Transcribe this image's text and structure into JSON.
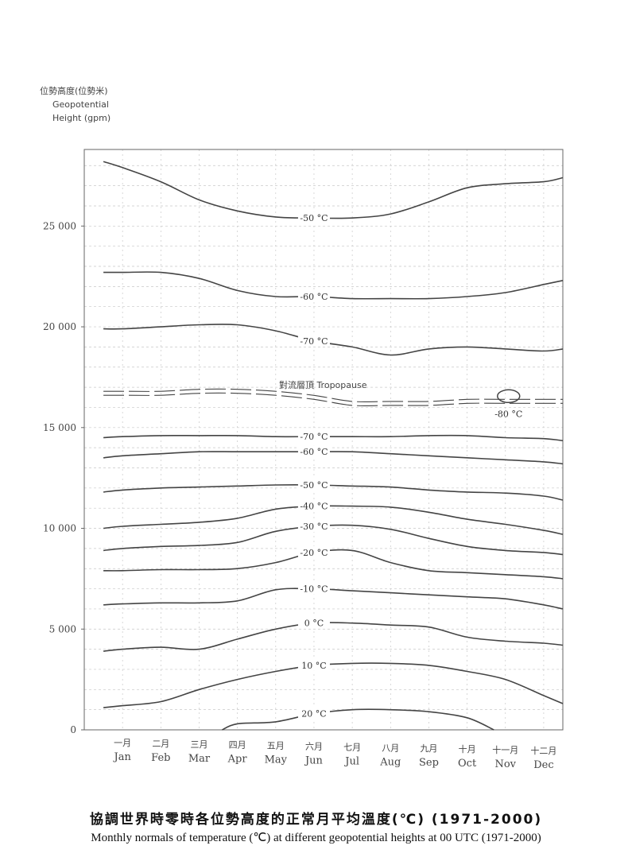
{
  "chart_data": {
    "type": "contour",
    "ylabel_zh": "位勢高度(位勢米)",
    "ylabel_en_1": "Geopotential",
    "ylabel_en_2": "Height (gpm)",
    "y_ticks": [
      0,
      5000,
      10000,
      15000,
      20000,
      25000
    ],
    "y_tick_labels": [
      "0",
      "5 000",
      "10 000",
      "15 000",
      "20 000",
      "25 000"
    ],
    "ylim": [
      0,
      28800
    ],
    "months_zh": [
      "一月",
      "二月",
      "三月",
      "四月",
      "五月",
      "六月",
      "七月",
      "八月",
      "九月",
      "十月",
      "十一月",
      "十二月"
    ],
    "months_en": [
      "Jan",
      "Feb",
      "Mar",
      "Apr",
      "May",
      "Jun",
      "Jul",
      "Aug",
      "Sep",
      "Oct",
      "Nov",
      "Dec"
    ],
    "grid": true,
    "contours": [
      {
        "label": "-50 °C",
        "x": [
          0.5,
          1,
          2,
          3,
          4,
          5,
          6,
          7,
          8,
          9,
          10,
          11,
          12,
          12.5
        ],
        "y": [
          28200,
          27900,
          27200,
          26300,
          25750,
          25450,
          25400,
          25400,
          25600,
          26200,
          26900,
          27100,
          27200,
          27400
        ],
        "label_x": 6
      },
      {
        "label": "-60 °C",
        "x": [
          0.5,
          1,
          2,
          3,
          4,
          5,
          6,
          7,
          8,
          9,
          10,
          11,
          12,
          12.5
        ],
        "y": [
          22700,
          22700,
          22700,
          22400,
          21800,
          21500,
          21500,
          21400,
          21400,
          21400,
          21500,
          21700,
          22100,
          22300
        ],
        "label_x": 6
      },
      {
        "label": "-70 °C",
        "x": [
          0.5,
          1,
          2,
          3,
          4,
          5,
          6,
          7,
          8,
          9,
          10,
          11,
          12,
          12.5
        ],
        "y": [
          19900,
          19900,
          20000,
          20100,
          20100,
          19800,
          19300,
          19000,
          18600,
          18900,
          19000,
          18900,
          18800,
          18900
        ],
        "label_x": 6
      },
      {
        "label": "-70 °C",
        "x": [
          0.5,
          1,
          2,
          3,
          4,
          5,
          6,
          7,
          8,
          9,
          10,
          11,
          12,
          12.5
        ],
        "y": [
          14500,
          14550,
          14600,
          14600,
          14600,
          14550,
          14550,
          14550,
          14550,
          14600,
          14600,
          14500,
          14450,
          14350
        ],
        "label_x": 6
      },
      {
        "label": "-60 °C",
        "x": [
          0.5,
          1,
          2,
          3,
          4,
          5,
          6,
          7,
          8,
          9,
          10,
          11,
          12,
          12.5
        ],
        "y": [
          13500,
          13600,
          13700,
          13800,
          13800,
          13800,
          13800,
          13800,
          13700,
          13600,
          13500,
          13400,
          13300,
          13200
        ],
        "label_x": 6
      },
      {
        "label": "-50 °C",
        "x": [
          0.5,
          1,
          2,
          3,
          4,
          5,
          6,
          7,
          8,
          9,
          10,
          11,
          12,
          12.5
        ],
        "y": [
          11800,
          11900,
          12000,
          12050,
          12100,
          12150,
          12150,
          12100,
          12050,
          11900,
          11800,
          11750,
          11600,
          11400
        ],
        "label_x": 6
      },
      {
        "label": "-40 °C",
        "x": [
          0.5,
          1,
          2,
          3,
          4,
          5,
          6,
          7,
          8,
          9,
          10,
          11,
          12,
          12.5
        ],
        "y": [
          10000,
          10100,
          10200,
          10300,
          10500,
          10950,
          11100,
          11100,
          11050,
          10800,
          10450,
          10200,
          9900,
          9700
        ],
        "label_x": 6
      },
      {
        "label": "-30 °C",
        "x": [
          0.5,
          1,
          2,
          3,
          4,
          5,
          6,
          7,
          8,
          9,
          10,
          11,
          12,
          12.5
        ],
        "y": [
          8900,
          9000,
          9100,
          9150,
          9300,
          9850,
          10100,
          10150,
          9950,
          9500,
          9100,
          8900,
          8800,
          8700
        ],
        "label_x": 6
      },
      {
        "label": "-20 °C",
        "x": [
          0.5,
          1,
          2,
          3,
          4,
          5,
          6,
          7,
          8,
          9,
          10,
          11,
          12,
          12.5
        ],
        "y": [
          7900,
          7900,
          7950,
          7950,
          8000,
          8300,
          8800,
          8900,
          8300,
          7900,
          7800,
          7700,
          7600,
          7500
        ],
        "label_x": 6
      },
      {
        "label": "-10 °C",
        "x": [
          0.5,
          1,
          2,
          3,
          4,
          5,
          6,
          7,
          8,
          9,
          10,
          11,
          12,
          12.5
        ],
        "y": [
          6200,
          6250,
          6300,
          6300,
          6400,
          6950,
          7000,
          6900,
          6800,
          6700,
          6600,
          6500,
          6200,
          6000
        ],
        "label_x": 6
      },
      {
        "label": "0 °C",
        "x": [
          0.5,
          1,
          2,
          3,
          4,
          5,
          6,
          7,
          8,
          9,
          10,
          11,
          12,
          12.5
        ],
        "y": [
          3900,
          4000,
          4100,
          4000,
          4500,
          5000,
          5300,
          5300,
          5200,
          5100,
          4600,
          4400,
          4300,
          4200
        ],
        "label_x": 6
      },
      {
        "label": "10 °C",
        "x": [
          0.5,
          1,
          2,
          3,
          4,
          5,
          6,
          7,
          8,
          9,
          10,
          11,
          12,
          12.5
        ],
        "y": [
          1100,
          1200,
          1400,
          2000,
          2500,
          2900,
          3200,
          3300,
          3300,
          3200,
          2900,
          2500,
          1700,
          1300
        ],
        "label_x": 6
      },
      {
        "label": "20 °C",
        "x": [
          3.6,
          4,
          5,
          6,
          7,
          8,
          9,
          10,
          10.7
        ],
        "y": [
          0,
          300,
          400,
          800,
          1000,
          1000,
          900,
          600,
          0
        ],
        "label_x": 6
      }
    ],
    "tropopause": {
      "label": "對流層頂 Tropopause",
      "x": [
        0.5,
        1,
        2,
        3,
        4,
        5,
        6,
        7,
        8,
        9,
        10,
        11,
        12,
        12.5
      ],
      "y": [
        16700,
        16700,
        16700,
        16800,
        16800,
        16700,
        16500,
        16200,
        16200,
        16200,
        16300,
        16300,
        16300,
        16300
      ]
    },
    "closed_contour": {
      "label": "-80 °C",
      "x": 11,
      "y": 16400
    },
    "title_zh": "協調世界時零時各位勢高度的正常月平均溫度(℃) (1971-2000)",
    "title_en": "Monthly normals of temperature (℃) at different geopotential heights at 00 UTC (1971-2000)"
  },
  "colors": {
    "contour": "#444444",
    "grid": "#c8c8c8",
    "frame": "#666666",
    "text": "#444444"
  }
}
